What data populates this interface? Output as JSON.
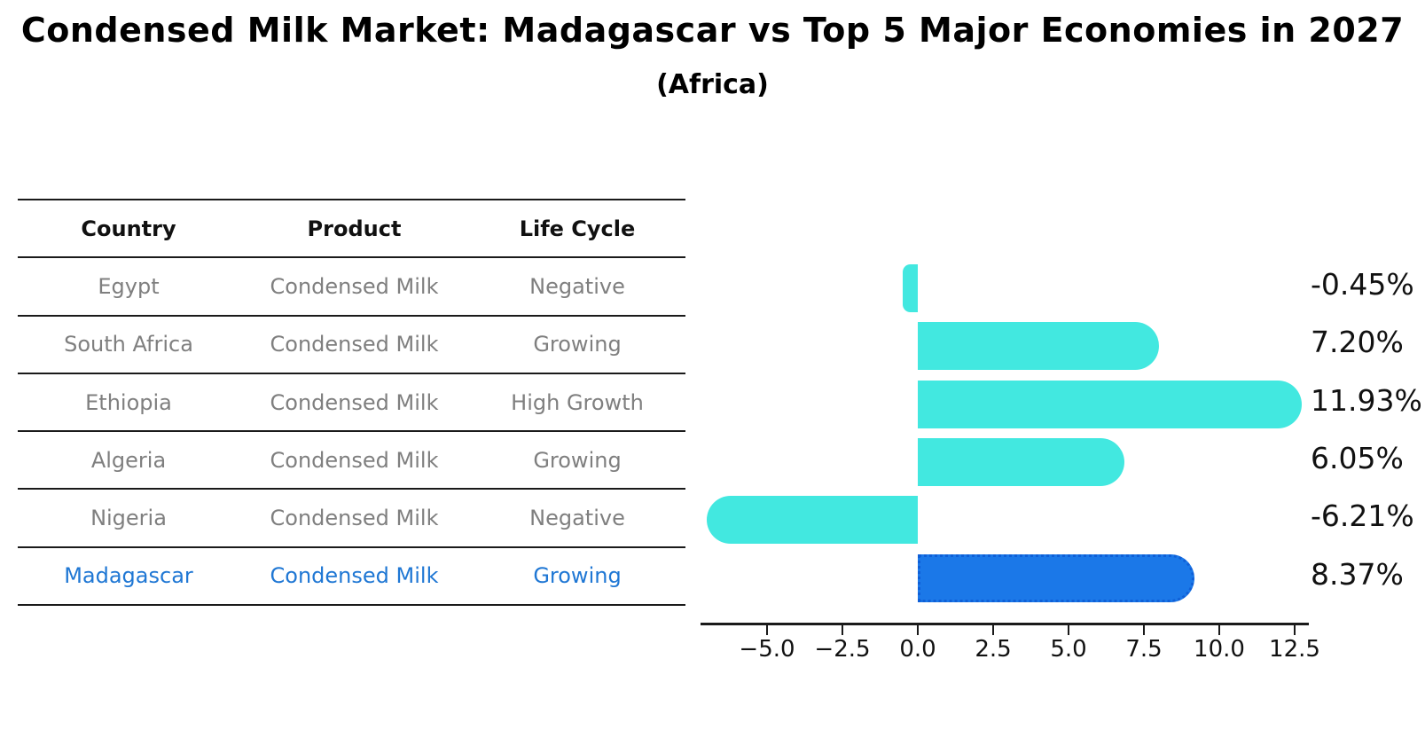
{
  "title": "Condensed Milk Market: Madagascar vs Top 5 Major Economies in 2027",
  "subtitle": "(Africa)",
  "colors": {
    "bar_fill": "#42e8e0",
    "highlight_bar_fill": "#1b78e8",
    "highlight_bar_border": "#0f5fd7",
    "highlight_text": "#1f77d4",
    "row_text": "#7f7f7f",
    "header_text": "#111111",
    "axis": "#1a1a1a"
  },
  "table": {
    "columns": [
      "Country",
      "Product",
      "Life Cycle"
    ],
    "rows": [
      {
        "country": "Egypt",
        "product": "Condensed Milk",
        "life_cycle": "Negative",
        "highlight": false
      },
      {
        "country": "South Africa",
        "product": "Condensed Milk",
        "life_cycle": "Growing",
        "highlight": false
      },
      {
        "country": "Ethiopia",
        "product": "Condensed Milk",
        "life_cycle": "High Growth",
        "highlight": false
      },
      {
        "country": "Algeria",
        "product": "Condensed Milk",
        "life_cycle": "Growing",
        "highlight": false
      },
      {
        "country": "Nigeria",
        "product": "Condensed Milk",
        "life_cycle": "Negative",
        "highlight": false
      },
      {
        "country": "Madagascar",
        "product": "Condensed Milk",
        "life_cycle": "Growing",
        "highlight": true
      }
    ]
  },
  "chart_data": {
    "type": "bar",
    "orientation": "horizontal",
    "title": "",
    "xlabel": "",
    "ylabel": "",
    "categories": [
      "Egypt",
      "South Africa",
      "Ethiopia",
      "Algeria",
      "Nigeria",
      "Madagascar"
    ],
    "values": [
      -0.45,
      7.2,
      11.93,
      6.05,
      -6.21,
      8.37
    ],
    "value_labels": [
      "-0.45%",
      "7.20%",
      "11.93%",
      "6.05%",
      "-6.21%",
      "8.37%"
    ],
    "highlight_index": 5,
    "x_ticks": [
      -5.0,
      -2.5,
      0.0,
      2.5,
      5.0,
      7.5,
      10.0,
      12.5
    ],
    "x_tick_labels": [
      "−5.0",
      "−2.5",
      "0.0",
      "2.5",
      "5.0",
      "7.5",
      "10.0",
      "12.5"
    ],
    "xlim": [
      -7.2,
      13.0
    ],
    "grid": false,
    "legend": "none"
  }
}
